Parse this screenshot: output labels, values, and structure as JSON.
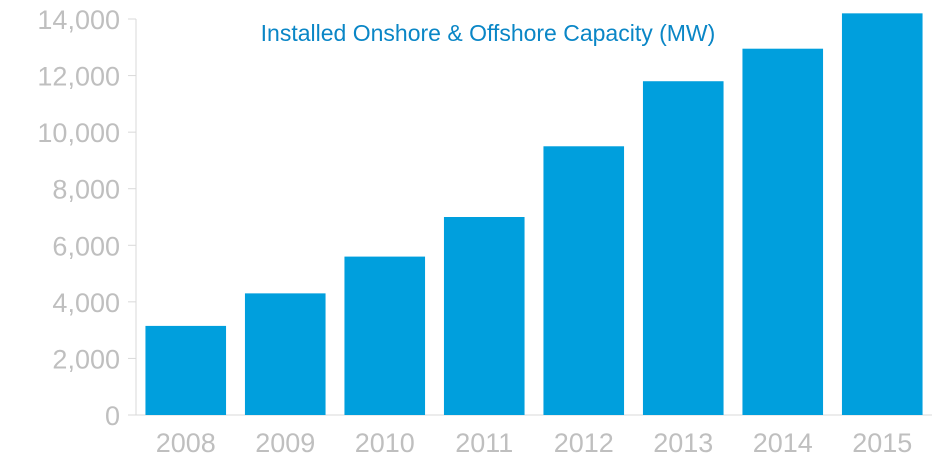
{
  "chart_data": {
    "type": "bar",
    "title": "Installed Onshore & Offshore Capacity (MW)",
    "xlabel": "",
    "ylabel": "",
    "categories": [
      "2008",
      "2009",
      "2010",
      "2011",
      "2012",
      "2013",
      "2014",
      "2015"
    ],
    "values": [
      3150,
      4300,
      5600,
      7000,
      9500,
      11800,
      12950,
      14200
    ],
    "ylim": [
      0,
      14000
    ],
    "yticks": [
      0,
      2000,
      4000,
      6000,
      8000,
      10000,
      12000,
      14000
    ],
    "ytick_labels": [
      "0",
      "2,000",
      "4,000",
      "6,000",
      "8,000",
      "10,000",
      "12,000",
      "14,000"
    ],
    "grid": false,
    "legend": "none",
    "colors": {
      "bar": "#009fdd",
      "title": "#0a86c6",
      "axis_text": "#bfbfbf",
      "axis_line": "#d9d9d9"
    }
  }
}
